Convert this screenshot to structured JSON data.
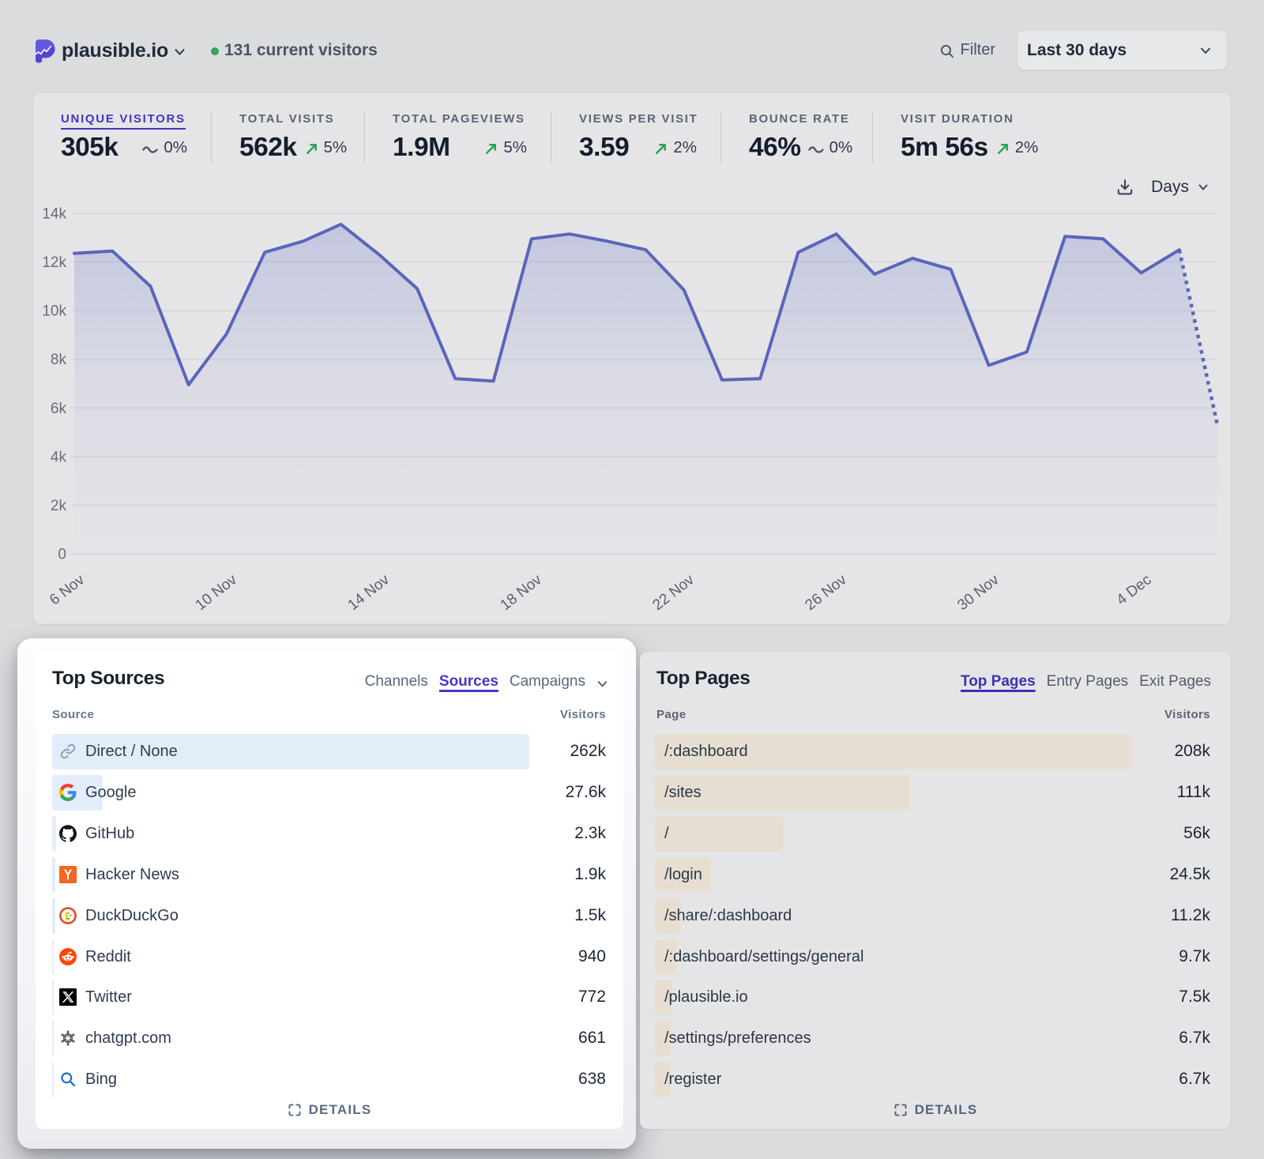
{
  "header": {
    "site_name": "plausible.io",
    "current_visitors": "131 current visitors",
    "filter_label": "Filter",
    "date_range": "Last 30 days"
  },
  "stats": [
    {
      "label": "UNIQUE VISITORS",
      "value": "305k",
      "change": "0%",
      "trend": "flat",
      "active": true
    },
    {
      "label": "TOTAL VISITS",
      "value": "562k",
      "change": "5%",
      "trend": "up",
      "active": false
    },
    {
      "label": "TOTAL PAGEVIEWS",
      "value": "1.9M",
      "change": "5%",
      "trend": "up",
      "active": false
    },
    {
      "label": "VIEWS PER VISIT",
      "value": "3.59",
      "change": "2%",
      "trend": "up",
      "active": false
    },
    {
      "label": "BOUNCE RATE",
      "value": "46%",
      "change": "0%",
      "trend": "flat",
      "active": false
    },
    {
      "label": "VISIT DURATION",
      "value": "5m 56s",
      "change": "2%",
      "trend": "up",
      "active": false
    }
  ],
  "chart_controls": {
    "interval": "Days"
  },
  "chart_data": {
    "type": "area",
    "title": "Unique visitors - last 30 days",
    "x": [
      "6 Nov",
      "7 Nov",
      "8 Nov",
      "9 Nov",
      "10 Nov",
      "11 Nov",
      "12 Nov",
      "13 Nov",
      "14 Nov",
      "15 Nov",
      "16 Nov",
      "17 Nov",
      "18 Nov",
      "19 Nov",
      "20 Nov",
      "21 Nov",
      "22 Nov",
      "23 Nov",
      "24 Nov",
      "25 Nov",
      "26 Nov",
      "27 Nov",
      "28 Nov",
      "29 Nov",
      "30 Nov",
      "1 Dec",
      "2 Dec",
      "3 Dec",
      "4 Dec",
      "5 Dec",
      "6 Dec"
    ],
    "values": [
      12350,
      12450,
      11000,
      6950,
      9050,
      12400,
      12850,
      13550,
      12300,
      10900,
      7200,
      7100,
      12950,
      13150,
      12850,
      12500,
      10850,
      7150,
      7200,
      12400,
      13150,
      11500,
      12150,
      11700,
      7750,
      8300,
      13050,
      12950,
      11550,
      12500,
      5300
    ],
    "dashed_from_index": 29,
    "x_tick_every": 4,
    "x_tick_labels": [
      "6 Nov",
      "10 Nov",
      "14 Nov",
      "18 Nov",
      "22 Nov",
      "26 Nov",
      "30 Nov",
      "4 Dec"
    ],
    "y_ticks": [
      0,
      2000,
      4000,
      6000,
      8000,
      10000,
      12000,
      14000
    ],
    "y_tick_labels": [
      "0",
      "2k",
      "4k",
      "6k",
      "8k",
      "10k",
      "12k",
      "14k"
    ],
    "ylim": [
      0,
      14000
    ],
    "grid": "horizontal",
    "legend": "none",
    "line_color": "#5a66bb",
    "fill_color": "#636fc4"
  },
  "top_sources": {
    "title": "Top Sources",
    "tabs": [
      {
        "label": "Channels",
        "active": false
      },
      {
        "label": "Sources",
        "active": true
      },
      {
        "label": "Campaigns",
        "active": false
      }
    ],
    "columns": {
      "name": "Source",
      "value": "Visitors"
    },
    "rows": [
      {
        "icon": "link-icon",
        "label": "Direct / None",
        "visitors": "262k",
        "visitors_num": 262000
      },
      {
        "icon": "google-icon",
        "label": "Google",
        "visitors": "27.6k",
        "visitors_num": 27600
      },
      {
        "icon": "github-icon",
        "label": "GitHub",
        "visitors": "2.3k",
        "visitors_num": 2300
      },
      {
        "icon": "hackernews-icon",
        "label": "Hacker News",
        "visitors": "1.9k",
        "visitors_num": 1900
      },
      {
        "icon": "duckduckgo-icon",
        "label": "DuckDuckGo",
        "visitors": "1.5k",
        "visitors_num": 1500
      },
      {
        "icon": "reddit-icon",
        "label": "Reddit",
        "visitors": "940",
        "visitors_num": 940
      },
      {
        "icon": "twitter-icon",
        "label": "Twitter",
        "visitors": "772",
        "visitors_num": 772
      },
      {
        "icon": "chatgpt-icon",
        "label": "chatgpt.com",
        "visitors": "661",
        "visitors_num": 661
      },
      {
        "icon": "bing-icon",
        "label": "Bing",
        "visitors": "638",
        "visitors_num": 638
      }
    ],
    "details_label": "DETAILS"
  },
  "top_pages": {
    "title": "Top Pages",
    "tabs": [
      {
        "label": "Top Pages",
        "active": true
      },
      {
        "label": "Entry Pages",
        "active": false
      },
      {
        "label": "Exit Pages",
        "active": false
      }
    ],
    "columns": {
      "name": "Page",
      "value": "Visitors"
    },
    "rows": [
      {
        "label": "/:dashboard",
        "visitors": "208k",
        "visitors_num": 208000
      },
      {
        "label": "/sites",
        "visitors": "111k",
        "visitors_num": 111000
      },
      {
        "label": "/",
        "visitors": "56k",
        "visitors_num": 56000
      },
      {
        "label": "/login",
        "visitors": "24.5k",
        "visitors_num": 24500
      },
      {
        "label": "/share/:dashboard",
        "visitors": "11.2k",
        "visitors_num": 11200
      },
      {
        "label": "/:dashboard/settings/general",
        "visitors": "9.7k",
        "visitors_num": 9700
      },
      {
        "label": "/plausible.io",
        "visitors": "7.5k",
        "visitors_num": 7500
      },
      {
        "label": "/settings/preferences",
        "visitors": "6.7k",
        "visitors_num": 6700
      },
      {
        "label": "/register",
        "visitors": "6.7k",
        "visitors_num": 6700
      }
    ],
    "details_label": "DETAILS"
  },
  "colors": {
    "accent_indigo": "#4338ca",
    "chart_line": "#5a66bb",
    "positive_green": "#2aa158",
    "source_bar": "#e3edfa",
    "page_bar": "#e6dfd1"
  }
}
